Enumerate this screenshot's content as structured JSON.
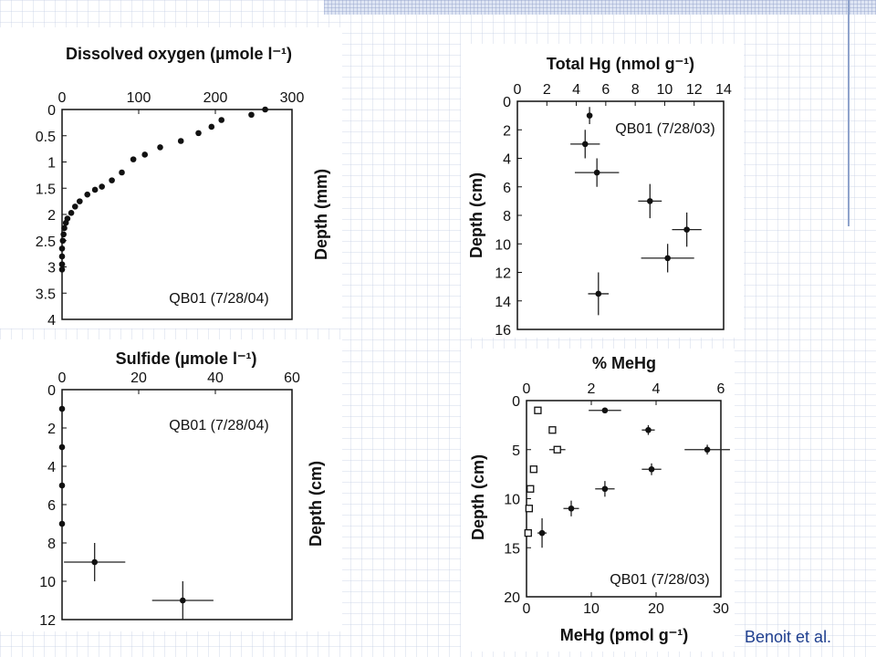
{
  "slide": {
    "credit": "Benoit et al."
  },
  "chart_data": [
    {
      "id": "oxygen",
      "type": "scatter",
      "title": "Dissolved oxygen (µmole l⁻¹)",
      "ylabel": "Depth (mm)",
      "annotation": "QB01 (7/28/04)",
      "xlim": [
        0,
        300
      ],
      "ylim": [
        0,
        4
      ],
      "xticks": [
        "0",
        "100",
        "200",
        "300"
      ],
      "yticks": [
        "0",
        "0.5",
        "1",
        "1.5",
        "2",
        "2.5",
        "3",
        "3.5",
        "4"
      ],
      "xtick_values": [
        0,
        100,
        200,
        300
      ],
      "ytick_values": [
        0,
        0.5,
        1,
        1.5,
        2,
        2.5,
        3,
        3.5,
        4
      ],
      "x_axis_position": "top",
      "y_inverted": true,
      "grid": false,
      "series": [
        {
          "marker": "dot",
          "points": [
            [
              265,
              0.0
            ],
            [
              247,
              0.1
            ],
            [
              208,
              0.2
            ],
            [
              195,
              0.33
            ],
            [
              178,
              0.45
            ],
            [
              155,
              0.6
            ],
            [
              128,
              0.72
            ],
            [
              108,
              0.86
            ],
            [
              93,
              0.95
            ],
            [
              78,
              1.2
            ],
            [
              65,
              1.35
            ],
            [
              52,
              1.47
            ],
            [
              43,
              1.53
            ],
            [
              33,
              1.62
            ],
            [
              23,
              1.75
            ],
            [
              17,
              1.85
            ],
            [
              12,
              1.97
            ],
            [
              7,
              2.08
            ],
            [
              5,
              2.16
            ],
            [
              3,
              2.26
            ],
            [
              2,
              2.38
            ],
            [
              1,
              2.5
            ],
            [
              0,
              2.65
            ],
            [
              0,
              2.8
            ],
            [
              0,
              2.95
            ],
            [
              0,
              3.05
            ]
          ]
        }
      ]
    },
    {
      "id": "sulfide",
      "type": "scatter",
      "title": "Sulfide (µmole l⁻¹)",
      "ylabel": "Depth (cm)",
      "annotation": "QB01 (7/28/04)",
      "xlim": [
        0,
        60
      ],
      "ylim": [
        0,
        12
      ],
      "xticks": [
        "0",
        "20",
        "40",
        "60"
      ],
      "yticks": [
        "0",
        "2",
        "4",
        "6",
        "8",
        "10",
        "12"
      ],
      "xtick_values": [
        0,
        20,
        40,
        60
      ],
      "ytick_values": [
        0,
        2,
        4,
        6,
        8,
        10,
        12
      ],
      "x_axis_position": "top",
      "y_inverted": true,
      "grid": false,
      "series": [
        {
          "marker": "dot",
          "points": [
            [
              0,
              1,
              0,
              0
            ],
            [
              0,
              3,
              0,
              0
            ],
            [
              0,
              5,
              0,
              0
            ],
            [
              0,
              7,
              0,
              0
            ],
            [
              8.5,
              9,
              8,
              1
            ],
            [
              31.5,
              11,
              8,
              1
            ]
          ]
        }
      ]
    },
    {
      "id": "totalhg",
      "type": "scatter",
      "title": "Total Hg (nmol g⁻¹)",
      "ylabel": "Depth (cm)",
      "annotation": "QB01 (7/28/03)",
      "xlim": [
        0,
        14
      ],
      "ylim": [
        0,
        16
      ],
      "xticks": [
        "0",
        "2",
        "4",
        "6",
        "8",
        "10",
        "12",
        "14"
      ],
      "yticks": [
        "0",
        "2",
        "4",
        "6",
        "8",
        "10",
        "12",
        "14",
        "16"
      ],
      "xtick_values": [
        0,
        2,
        4,
        6,
        8,
        10,
        12,
        14
      ],
      "ytick_values": [
        0,
        2,
        4,
        6,
        8,
        10,
        12,
        14,
        16
      ],
      "x_axis_position": "top",
      "y_inverted": true,
      "grid": false,
      "series": [
        {
          "marker": "dot",
          "points": [
            [
              4.9,
              1,
              0,
              0.6
            ],
            [
              4.6,
              3,
              1,
              1
            ],
            [
              5.4,
              5,
              1.5,
              1
            ],
            [
              9.0,
              7,
              0.8,
              1.2
            ],
            [
              11.5,
              9,
              1,
              1.2
            ],
            [
              10.2,
              11,
              1.8,
              1
            ],
            [
              5.5,
              13.5,
              0.7,
              1.5
            ]
          ]
        }
      ]
    },
    {
      "id": "mehg",
      "type": "scatter",
      "title": "% MeHg",
      "xlabel": "MeHg (pmol g⁻¹)",
      "ylabel": "Depth (cm)",
      "annotation": "QB01 (7/28/03)",
      "xlim": [
        0,
        30
      ],
      "ylim": [
        0,
        20
      ],
      "xticks": [
        "0",
        "10",
        "20",
        "30"
      ],
      "yticks": [
        "0",
        "5",
        "10",
        "15",
        "20"
      ],
      "xtick_values": [
        0,
        10,
        20,
        30
      ],
      "ytick_values": [
        0,
        5,
        10,
        15,
        20
      ],
      "top_xlim": [
        0,
        6
      ],
      "top_xticks": [
        "0",
        "2",
        "4",
        "6"
      ],
      "top_xtick_values": [
        0,
        2,
        4,
        6
      ],
      "y_inverted": true,
      "grid": false,
      "series": [
        {
          "marker": "open-square",
          "axis": "top",
          "points": [
            [
              0.35,
              1,
              0,
              0
            ],
            [
              0.8,
              3,
              0,
              0
            ],
            [
              0.95,
              5,
              0.25,
              0
            ],
            [
              0.22,
              7,
              0,
              0
            ],
            [
              0.12,
              9,
              0,
              0
            ],
            [
              0.08,
              11,
              0,
              0
            ],
            [
              0.05,
              13.5,
              0,
              0
            ]
          ]
        },
        {
          "marker": "dot",
          "axis": "bottom",
          "points": [
            [
              12.1,
              1,
              2.5,
              0
            ],
            [
              18.8,
              3,
              1,
              0.5
            ],
            [
              27.9,
              5,
              3.5,
              0.5
            ],
            [
              19.3,
              7,
              1.5,
              0.6
            ],
            [
              12.1,
              9,
              1.5,
              0.8
            ],
            [
              6.9,
              11,
              1.2,
              0.8
            ],
            [
              2.4,
              13.5,
              0.7,
              1.5
            ]
          ]
        }
      ]
    }
  ]
}
